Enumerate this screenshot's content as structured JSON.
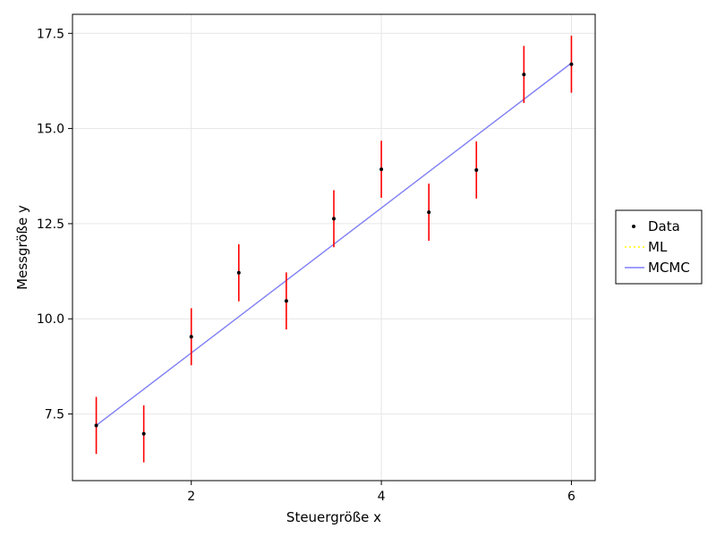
{
  "chart_data": {
    "type": "scatter",
    "xlabel": "Steuergröße x",
    "ylabel": "Messgröße y",
    "xlim": [
      0.75,
      6.25
    ],
    "ylim": [
      5.75,
      18.0
    ],
    "xticks": [
      2,
      4,
      6
    ],
    "xtick_labels": [
      "2",
      "4",
      "6"
    ],
    "yticks": [
      7.5,
      10.0,
      12.5,
      15.0,
      17.5
    ],
    "ytick_labels": [
      "7.5",
      "10.0",
      "12.5",
      "15.0",
      "17.5"
    ],
    "grid": true,
    "legend_position": "right",
    "series": [
      {
        "name": "Data",
        "kind": "points_with_errorbars",
        "color": "#000000",
        "errorbar_color": "#ff0000",
        "x": [
          1.0,
          1.5,
          2.0,
          2.5,
          3.0,
          3.5,
          4.0,
          4.5,
          5.0,
          5.5,
          6.0
        ],
        "y": [
          7.2,
          6.98,
          9.53,
          11.21,
          10.47,
          12.63,
          13.93,
          12.8,
          13.91,
          16.42,
          16.69
        ],
        "yerr": [
          0.75,
          0.75,
          0.75,
          0.75,
          0.75,
          0.75,
          0.75,
          0.75,
          0.75,
          0.75,
          0.75
        ]
      },
      {
        "name": "ML",
        "kind": "line",
        "color": "#ffff00",
        "dash": "dotted",
        "x": [
          1.0,
          6.0
        ],
        "y": [
          7.2,
          16.72
        ]
      },
      {
        "name": "MCMC",
        "kind": "line",
        "color": "#7f7fff",
        "x": [
          1.0,
          6.0
        ],
        "y": [
          7.2,
          16.72
        ]
      }
    ]
  }
}
